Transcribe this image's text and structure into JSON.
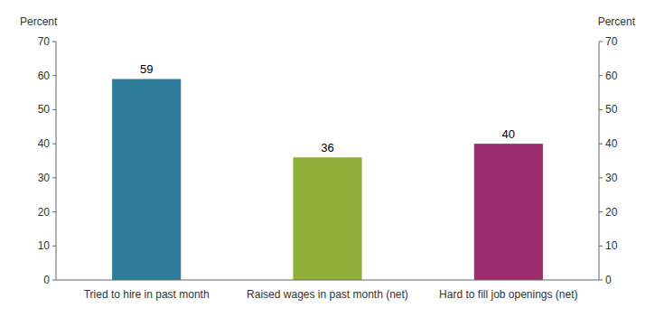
{
  "chart_data": {
    "type": "bar",
    "categories": [
      "Tried to hire in past month",
      "Raised wages in past month (net)",
      "Hard to fill job openings (net)"
    ],
    "values": [
      59,
      36,
      40
    ],
    "colors": [
      "#2E7B9A",
      "#8FAF3A",
      "#9B2C6E"
    ],
    "y_label": "Percent",
    "y2_label": "Percent",
    "ylim": [
      0,
      70
    ],
    "yticks": [
      0,
      10,
      20,
      30,
      40,
      50,
      60,
      70
    ],
    "y2lim": [
      0,
      70
    ],
    "y2ticks": [
      0,
      10,
      20,
      30,
      40,
      50,
      60,
      70
    ],
    "data_labels": true,
    "grid": false
  }
}
